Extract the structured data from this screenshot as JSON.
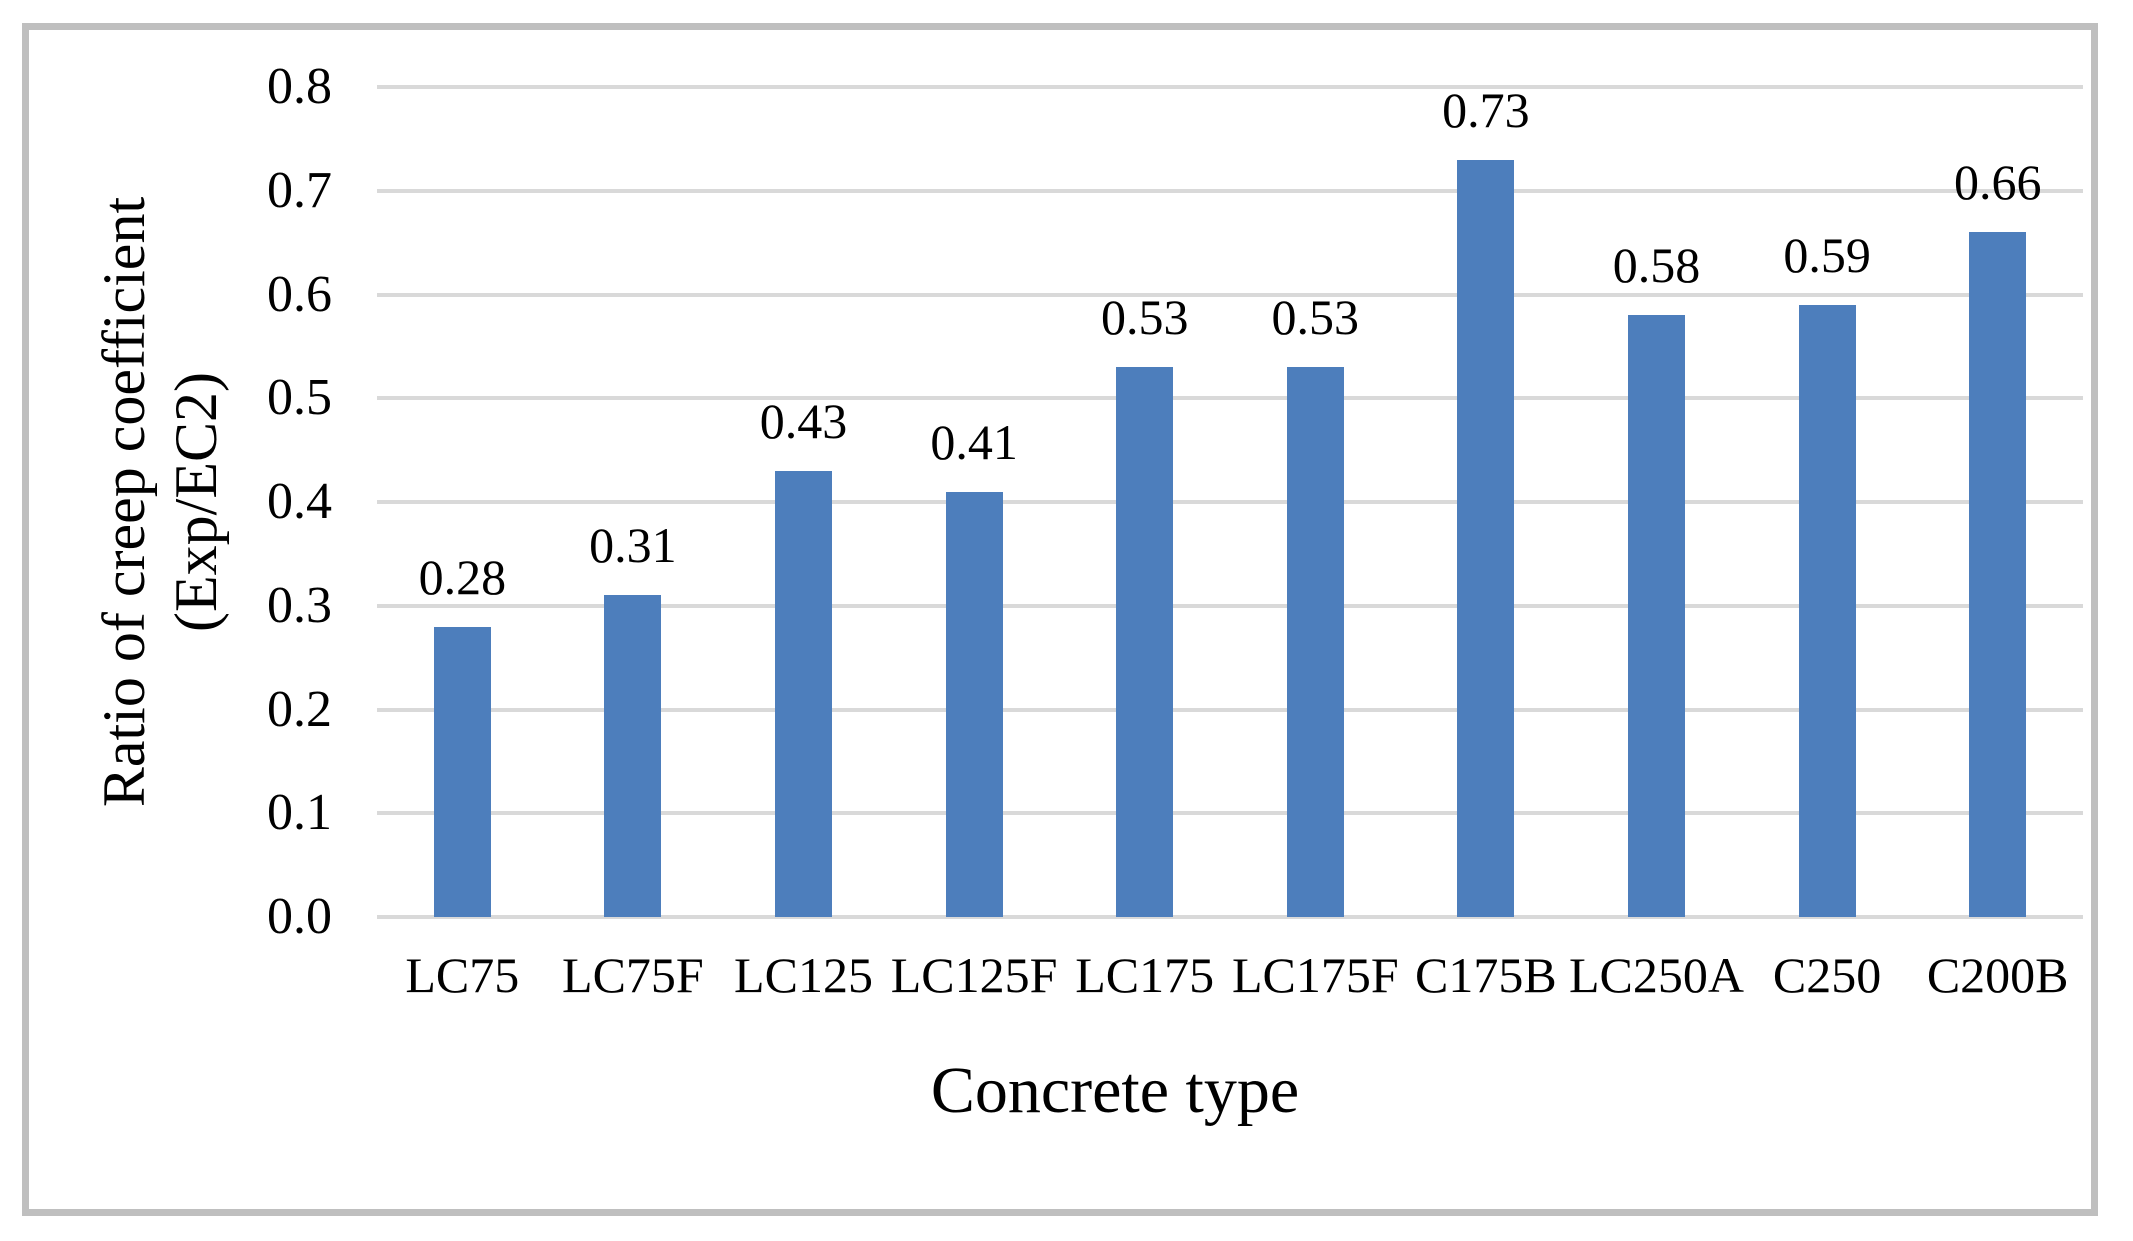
{
  "chart_data": {
    "type": "bar",
    "title": "",
    "xlabel": "Concrete type",
    "ylabel": "Ratio of creep coefficient (Exp/EC2)",
    "ylabel_lines": [
      "Ratio of creep coefficient",
      "(Exp/EC2)"
    ],
    "categories": [
      "LC75",
      "LC75F",
      "LC125",
      "LC125F",
      "LC175",
      "LC175F",
      "C175B",
      "LC250A",
      "C250",
      "C200B"
    ],
    "values": [
      0.28,
      0.31,
      0.43,
      0.41,
      0.53,
      0.53,
      0.73,
      0.58,
      0.59,
      0.66
    ],
    "value_labels": [
      "0.28",
      "0.31",
      "0.43",
      "0.41",
      "0.53",
      "0.53",
      "0.73",
      "0.58",
      "0.59",
      "0.66"
    ],
    "ylim": [
      0.0,
      0.8
    ],
    "ytick_step": 0.1,
    "yticks": [
      "0.0",
      "0.1",
      "0.2",
      "0.3",
      "0.4",
      "0.5",
      "0.6",
      "0.7",
      "0.8"
    ],
    "grid": "horizontal",
    "legend": "none",
    "colors": {
      "bar": "#4d7ebc",
      "gridline": "#d9d9d9",
      "frame_border": "#bfbfbf",
      "text": "#000000",
      "background": "#ffffff"
    }
  }
}
